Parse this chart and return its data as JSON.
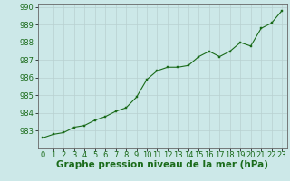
{
  "x": [
    0,
    1,
    2,
    3,
    4,
    5,
    6,
    7,
    8,
    9,
    10,
    11,
    12,
    13,
    14,
    15,
    16,
    17,
    18,
    19,
    20,
    21,
    22,
    23
  ],
  "y": [
    982.6,
    982.8,
    982.9,
    983.2,
    983.3,
    983.6,
    983.8,
    984.1,
    984.3,
    984.9,
    985.9,
    986.4,
    986.6,
    986.6,
    986.7,
    987.2,
    987.5,
    987.2,
    987.5,
    988.0,
    987.8,
    988.8,
    989.1,
    989.8
  ],
  "xlabel": "Graphe pression niveau de la mer (hPa)",
  "ylim": [
    982.0,
    990.2
  ],
  "xlim": [
    -0.5,
    23.5
  ],
  "yticks": [
    983,
    984,
    985,
    986,
    987,
    988,
    989,
    990
  ],
  "xticks": [
    0,
    1,
    2,
    3,
    4,
    5,
    6,
    7,
    8,
    9,
    10,
    11,
    12,
    13,
    14,
    15,
    16,
    17,
    18,
    19,
    20,
    21,
    22,
    23
  ],
  "line_color": "#1a6b1a",
  "marker_color": "#1a6b1a",
  "bg_color": "#cce8e8",
  "grid_color": "#b8d0d0",
  "plot_bg_color": "#cce8e8",
  "border_color": "#666666",
  "xlabel_fontsize": 7.5,
  "tick_fontsize": 6.0
}
